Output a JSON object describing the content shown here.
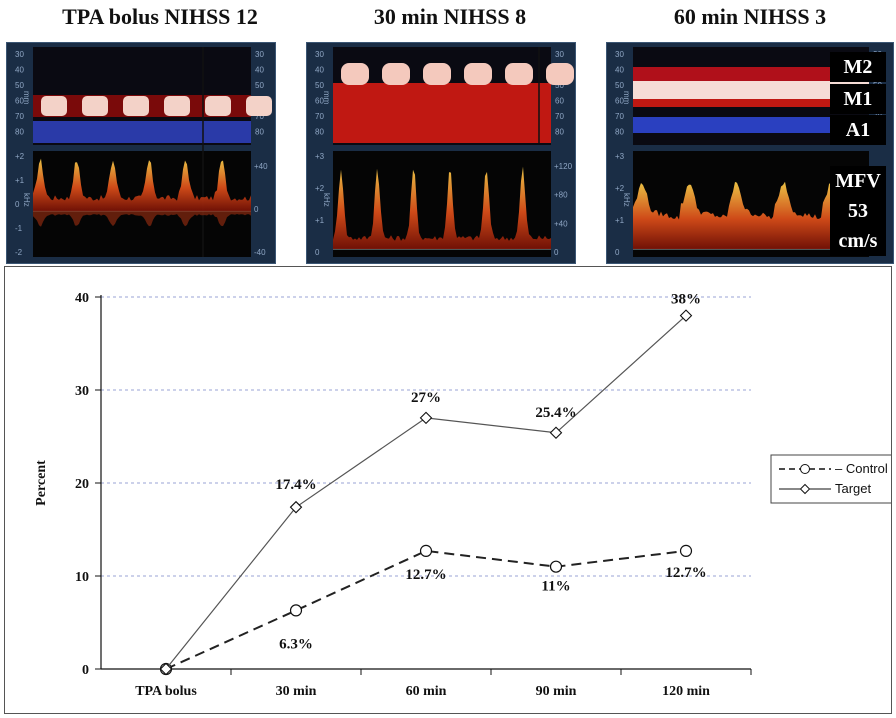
{
  "panels": [
    {
      "title": "TPA bolus NIHSS 12"
    },
    {
      "title": "30 min NIHSS 8"
    },
    {
      "title": "60 min NIHSS 3"
    }
  ],
  "overlay": {
    "vessels": [
      "M2",
      "M1",
      "A1"
    ],
    "mfv_lines": [
      "MFV",
      "53",
      "cm/s"
    ]
  },
  "doppler_scale": {
    "mm_label": "mm",
    "khz_label": "kHz",
    "mm_ticks": [
      "30",
      "40",
      "50",
      "60",
      "70",
      "80"
    ],
    "khz_ticks": [
      "+2",
      "+1",
      "0",
      "-1",
      "-2"
    ],
    "khz_ticks_pos": [
      "+3",
      "+2",
      "+1",
      "0"
    ],
    "right_ticks_1": [
      "+40",
      "0",
      "-40"
    ],
    "right_ticks_2": [
      "+120",
      "+80",
      "+40",
      "0"
    ]
  },
  "colors": {
    "control": "#222222",
    "target": "#555555",
    "grid": "#9aa3d6"
  },
  "chart_data": {
    "type": "line",
    "ylabel": "Percent",
    "xlabel": "",
    "ylim": [
      0,
      40
    ],
    "yticks": [
      0,
      10,
      20,
      30,
      40
    ],
    "grid": true,
    "legend_position": "right",
    "categories": [
      "TPA bolus",
      "30 min",
      "60 min",
      "90 min",
      "120 min"
    ],
    "series": [
      {
        "name": "Control",
        "values": [
          0,
          6.3,
          12.7,
          11,
          12.7
        ],
        "labels": [
          "",
          "6.3%",
          "12.7%",
          "11%",
          "12.7%"
        ],
        "style": "dashed",
        "marker": "circle"
      },
      {
        "name": "Target",
        "values": [
          0,
          17.4,
          27,
          25.4,
          38
        ],
        "labels": [
          "",
          "17.4%",
          "27%",
          "25.4%",
          "38%"
        ],
        "style": "solid",
        "marker": "diamond"
      }
    ]
  }
}
